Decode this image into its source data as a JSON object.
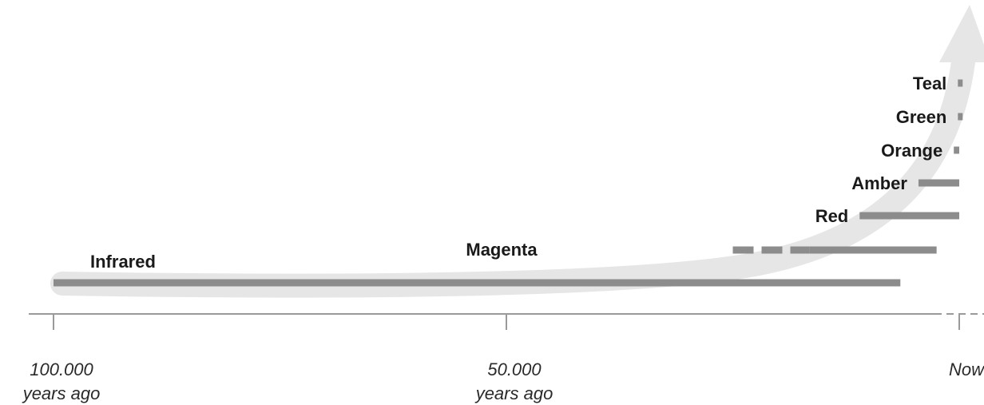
{
  "chart_data": {
    "type": "timeline",
    "x_unit": "years ago",
    "xlim": [
      100000,
      0
    ],
    "ticks": [
      {
        "value": 100000,
        "label_line1": "100.000",
        "label_line2": "years ago"
      },
      {
        "value": 50000,
        "label_line1": "50.000",
        "label_line2": "years ago"
      },
      {
        "value": 0,
        "label_line1": "Now",
        "label_line2": ""
      }
    ],
    "bars": [
      {
        "name": "Infrared",
        "start": 100000,
        "end": 6500,
        "dashed_until": null
      },
      {
        "name": "Magenta",
        "start": 25000,
        "end": 2500,
        "dashed_until": 16500
      },
      {
        "name": "Red",
        "start": 11000,
        "end": 0,
        "dashed_until": null
      },
      {
        "name": "Amber",
        "start": 4500,
        "end": 0,
        "dashed_until": null
      },
      {
        "name": "Orange",
        "start": 600,
        "end": 0,
        "dashed_until": null
      },
      {
        "name": "Green",
        "start": 150,
        "end": 0,
        "dashed_until": null
      },
      {
        "name": "Teal",
        "start": 150,
        "end": 0,
        "dashed_until": null
      }
    ],
    "colors": {
      "bar": "#8c8c8c",
      "arrow": "#e6e6e6",
      "axis": "#9a9a9a",
      "text": "#1a1a1a"
    }
  }
}
